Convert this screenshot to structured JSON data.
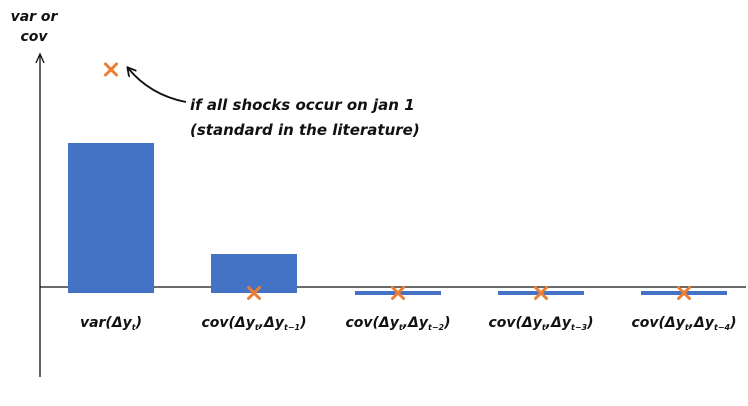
{
  "chart_data": {
    "type": "bar",
    "ylabel_lines": [
      "var or",
      "cov"
    ],
    "categories": [
      {
        "base": "var(Δy",
        "sub": "t",
        "tail": ")"
      },
      {
        "base": "cov(Δy",
        "sub": "t",
        "mid": ",Δy",
        "sub2": "t−1",
        "tail": ")"
      },
      {
        "base": "cov(Δy",
        "sub": "t",
        "mid": ",Δy",
        "sub2": "t−2",
        "tail": ")"
      },
      {
        "base": "cov(Δy",
        "sub": "t",
        "mid": ",Δy",
        "sub2": "t−3",
        "tail": ")"
      },
      {
        "base": "cov(Δy",
        "sub": "t",
        "mid": ",Δy",
        "sub2": "t−4",
        "tail": ")"
      }
    ],
    "values": [
      1.0,
      0.26,
      0.0,
      0.0,
      0.0
    ],
    "markers": [
      1.49,
      0.0,
      0.0,
      0.0,
      0.0
    ],
    "ylim": [
      -0.56,
      1.58
    ],
    "bar_color": "#4472c4",
    "marker_color": "#ed7d31",
    "annotation_lines": [
      "if all shocks occur on jan 1",
      "(standard in the literature)"
    ]
  }
}
